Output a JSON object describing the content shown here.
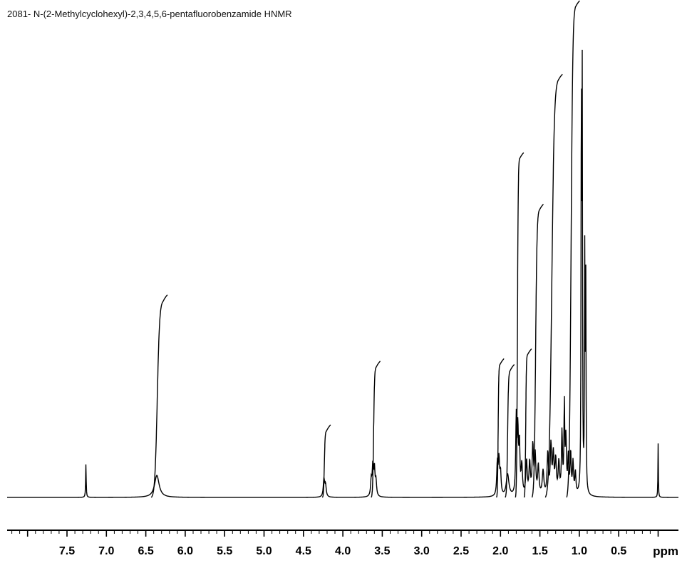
{
  "title": "2081- N-(2-Methylcyclohexyl)-2,3,4,5,6-pentafluorobenzamide HNMR",
  "chart_data": {
    "type": "line",
    "title": "2081- N-(2-Methylcyclohexyl)-2,3,4,5,6-pentafluorobenzamide HNMR",
    "xlabel": "ppm",
    "ylabel": "",
    "x_reversed": true,
    "xlim": [
      8.0,
      -0.1
    ],
    "ylim": [
      0,
      100
    ],
    "grid": false,
    "ticks": [
      "7.5",
      "7.0",
      "6.5",
      "6.0",
      "5.5",
      "5.0",
      "4.5",
      "4.0",
      "3.5",
      "3.0",
      "2.5",
      "2.0",
      "1.5",
      "1.0",
      "0.5"
    ],
    "series": [
      {
        "kind": "spectrum",
        "peaks": [
          {
            "ppm": 7.26,
            "height": 6.8,
            "width": 0.004
          },
          {
            "ppm": 6.36,
            "height": 4.5,
            "width": 0.035
          },
          {
            "ppm": 4.24,
            "height": 3.6,
            "width": 0.01
          },
          {
            "ppm": 4.22,
            "height": 2.4,
            "width": 0.01
          },
          {
            "ppm": 3.64,
            "height": 3.2,
            "width": 0.009
          },
          {
            "ppm": 3.62,
            "height": 6.0,
            "width": 0.009
          },
          {
            "ppm": 3.6,
            "height": 5.5,
            "width": 0.009
          },
          {
            "ppm": 3.58,
            "height": 3.0,
            "width": 0.009
          },
          {
            "ppm": 2.04,
            "height": 6.5,
            "width": 0.009
          },
          {
            "ppm": 2.02,
            "height": 7.0,
            "width": 0.009
          },
          {
            "ppm": 2.0,
            "height": 4.5,
            "width": 0.009
          },
          {
            "ppm": 1.91,
            "height": 4.5,
            "width": 0.02
          },
          {
            "ppm": 1.8,
            "height": 15.5,
            "width": 0.008
          },
          {
            "ppm": 1.78,
            "height": 12.5,
            "width": 0.008
          },
          {
            "ppm": 1.76,
            "height": 10.0,
            "width": 0.008
          },
          {
            "ppm": 1.73,
            "height": 6.0,
            "width": 0.01
          },
          {
            "ppm": 1.67,
            "height": 7.0,
            "width": 0.01
          },
          {
            "ppm": 1.63,
            "height": 6.5,
            "width": 0.01
          },
          {
            "ppm": 1.59,
            "height": 10.0,
            "width": 0.01
          },
          {
            "ppm": 1.56,
            "height": 8.0,
            "width": 0.01
          },
          {
            "ppm": 1.52,
            "height": 6.0,
            "width": 0.01
          },
          {
            "ppm": 1.46,
            "height": 5.0,
            "width": 0.012
          },
          {
            "ppm": 1.4,
            "height": 8.5,
            "width": 0.01
          },
          {
            "ppm": 1.36,
            "height": 10.0,
            "width": 0.01
          },
          {
            "ppm": 1.33,
            "height": 8.0,
            "width": 0.01
          },
          {
            "ppm": 1.3,
            "height": 7.0,
            "width": 0.01
          },
          {
            "ppm": 1.26,
            "height": 6.5,
            "width": 0.01
          },
          {
            "ppm": 1.22,
            "height": 12.5,
            "width": 0.008
          },
          {
            "ppm": 1.19,
            "height": 18.0,
            "width": 0.006
          },
          {
            "ppm": 1.17,
            "height": 11.0,
            "width": 0.008
          },
          {
            "ppm": 1.14,
            "height": 7.5,
            "width": 0.008
          },
          {
            "ppm": 1.11,
            "height": 8.5,
            "width": 0.008
          },
          {
            "ppm": 1.08,
            "height": 6.5,
            "width": 0.008
          },
          {
            "ppm": 1.05,
            "height": 4.5,
            "width": 0.008
          },
          {
            "ppm": 0.974,
            "height": 87.0,
            "width": 0.004
          },
          {
            "ppm": 0.963,
            "height": 80.0,
            "width": 0.004
          },
          {
            "ppm": 0.931,
            "height": 48.0,
            "width": 0.004
          },
          {
            "ppm": 0.918,
            "height": 42.5,
            "width": 0.004
          },
          {
            "ppm": 0.0,
            "height": 11.0,
            "width": 0.003
          }
        ]
      },
      {
        "kind": "integral",
        "steps": [
          {
            "start": 6.43,
            "end": 6.28,
            "rise": 40.0,
            "top": 40.0
          },
          {
            "start": 4.26,
            "end": 4.21,
            "rise": 13.5,
            "top": 13.5
          },
          {
            "start": 3.64,
            "end": 3.58,
            "rise": 26.5,
            "top": 26.5
          },
          {
            "start": 2.05,
            "end": 2.01,
            "rise": 27.0,
            "top": 27.0
          },
          {
            "start": 1.94,
            "end": 1.88,
            "rise": 25.8,
            "top": 25.8
          },
          {
            "start": 1.81,
            "end": 1.76,
            "rise": 69.0,
            "top": 69.0
          },
          {
            "start": 1.7,
            "end": 1.66,
            "rise": 29.0,
            "top": 29.0
          },
          {
            "start": 1.6,
            "end": 1.51,
            "rise": 58.5,
            "top": 58.5
          },
          {
            "start": 1.43,
            "end": 1.27,
            "rise": 85.0,
            "top": 85.0
          },
          {
            "start": 1.16,
            "end": 1.05,
            "rise": 100.0,
            "top": 100.0
          }
        ]
      }
    ]
  }
}
